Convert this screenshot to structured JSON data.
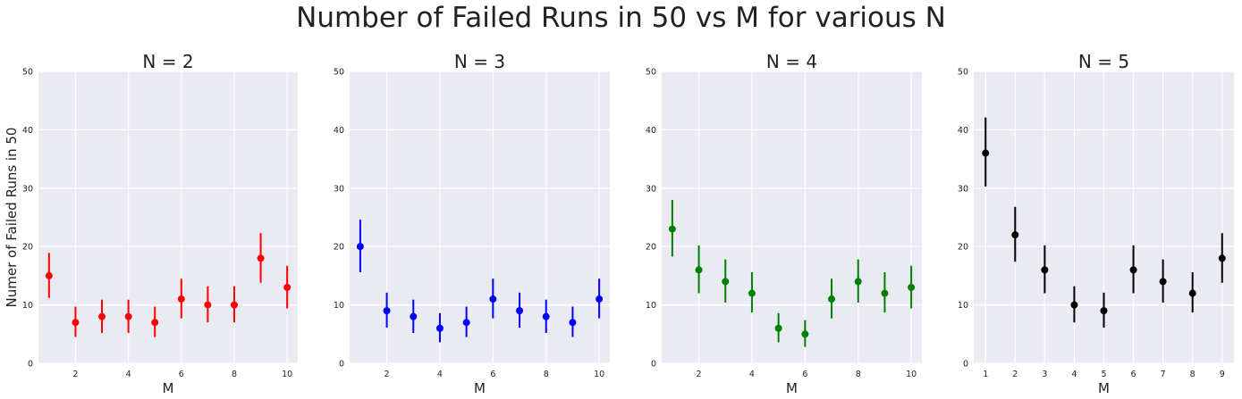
{
  "figure": {
    "title": "Number of Failed Runs in 50 vs M for various N"
  },
  "chart_data": [
    {
      "type": "scatter",
      "title": "N = 2",
      "xlabel": "M",
      "ylabel": "Numer of Failed Runs in 50",
      "color": "#ff0000",
      "xlim": [
        0.6,
        10.4
      ],
      "ylim": [
        0,
        50
      ],
      "xticks": [
        2,
        4,
        6,
        8,
        10
      ],
      "yticks": [
        0,
        10,
        20,
        30,
        40,
        50
      ],
      "x": [
        1,
        2,
        3,
        4,
        5,
        6,
        7,
        8,
        9,
        10
      ],
      "y": [
        15,
        7,
        8,
        8,
        7,
        11,
        10,
        10,
        18,
        13
      ],
      "yerr_low": [
        11.2,
        4.5,
        5.2,
        5.2,
        4.5,
        7.7,
        7.0,
        7.0,
        13.8,
        9.4
      ],
      "yerr_high": [
        18.9,
        9.7,
        10.9,
        10.9,
        9.7,
        14.5,
        13.2,
        13.2,
        22.3,
        16.7
      ],
      "grid": true
    },
    {
      "type": "scatter",
      "title": "N = 3",
      "xlabel": "M",
      "ylabel": "",
      "color": "#0000ff",
      "xlim": [
        0.6,
        10.4
      ],
      "ylim": [
        0,
        50
      ],
      "xticks": [
        2,
        4,
        6,
        8,
        10
      ],
      "yticks": [
        0,
        10,
        20,
        30,
        40,
        50
      ],
      "x": [
        1,
        2,
        3,
        4,
        5,
        6,
        7,
        8,
        9,
        10
      ],
      "y": [
        20,
        9,
        8,
        6,
        7,
        11,
        9,
        8,
        7,
        11
      ],
      "yerr_low": [
        15.6,
        6.1,
        5.2,
        3.6,
        4.5,
        7.7,
        6.1,
        5.2,
        4.5,
        7.7
      ],
      "yerr_high": [
        24.6,
        12.1,
        10.9,
        8.6,
        9.7,
        14.5,
        12.1,
        10.9,
        9.7,
        14.5
      ],
      "grid": true
    },
    {
      "type": "scatter",
      "title": "N = 4",
      "xlabel": "M",
      "ylabel": "",
      "color": "#008000",
      "xlim": [
        0.6,
        10.4
      ],
      "ylim": [
        0,
        50
      ],
      "xticks": [
        2,
        4,
        6,
        8,
        10
      ],
      "yticks": [
        0,
        10,
        20,
        30,
        40,
        50
      ],
      "x": [
        1,
        2,
        3,
        4,
        5,
        6,
        7,
        8,
        9,
        10
      ],
      "y": [
        23,
        16,
        14,
        12,
        6,
        5,
        11,
        14,
        12,
        13
      ],
      "yerr_low": [
        18.3,
        12.0,
        10.4,
        8.7,
        3.6,
        2.8,
        7.7,
        10.4,
        8.7,
        9.4
      ],
      "yerr_high": [
        28.0,
        20.2,
        17.8,
        15.6,
        8.6,
        7.4,
        14.5,
        17.8,
        15.6,
        16.7
      ],
      "grid": true
    },
    {
      "type": "scatter",
      "title": "N = 5",
      "xlabel": "M",
      "ylabel": "",
      "color": "#000000",
      "xlim": [
        0.6,
        9.4
      ],
      "ylim": [
        0,
        50
      ],
      "xticks": [
        1,
        2,
        3,
        4,
        5,
        6,
        7,
        8,
        9
      ],
      "yticks": [
        0,
        10,
        20,
        30,
        40,
        50
      ],
      "x": [
        1,
        2,
        3,
        4,
        5,
        6,
        7,
        8,
        9
      ],
      "y": [
        36,
        22,
        16,
        10,
        9,
        16,
        14,
        12,
        18
      ],
      "yerr_low": [
        30.3,
        17.4,
        12.0,
        7.0,
        6.1,
        12.0,
        10.4,
        8.7,
        13.8
      ],
      "yerr_high": [
        42.1,
        26.8,
        20.2,
        13.2,
        12.1,
        20.2,
        17.8,
        15.6,
        22.3
      ],
      "grid": true
    }
  ]
}
